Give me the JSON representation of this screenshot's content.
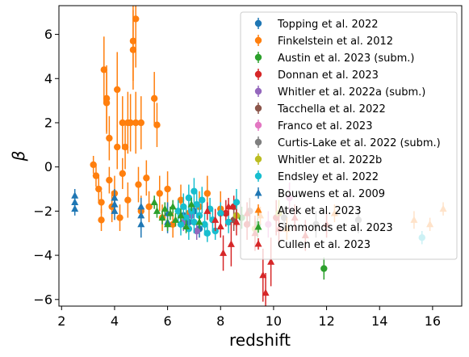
{
  "chart_data": {
    "type": "scatter",
    "title": "",
    "xlabel": "redshift",
    "ylabel": "β",
    "xlim": [
      1.9,
      17.1
    ],
    "ylim": [
      -6.3,
      7.3
    ],
    "xticks": [
      2,
      4,
      6,
      8,
      10,
      12,
      14,
      16
    ],
    "yticks": [
      -6,
      -4,
      -2,
      0,
      2,
      4,
      6
    ],
    "grid": false,
    "legend_position": "top-right",
    "series": [
      {
        "name": "Topping et al. 2022",
        "color": "#1f77b4",
        "marker": "circle",
        "points": [
          [
            6.6,
            -2.2,
            0.4
          ],
          [
            6.8,
            -2.5,
            0.3
          ],
          [
            7.0,
            -2.0,
            0.3
          ],
          [
            7.2,
            -2.8,
            0.4
          ]
        ]
      },
      {
        "name": "Finkelstein et al. 2012",
        "color": "#ff7f0e",
        "marker": "circle",
        "points": [
          [
            3.2,
            0.1,
            0.4
          ],
          [
            3.3,
            -0.4,
            0.5
          ],
          [
            3.4,
            -1.0,
            0.6
          ],
          [
            3.5,
            -1.6,
            0.5
          ],
          [
            3.5,
            -2.4,
            0.5
          ],
          [
            3.6,
            4.4,
            1.5
          ],
          [
            3.7,
            3.1,
            1.5
          ],
          [
            3.7,
            2.9,
            1.4
          ],
          [
            3.8,
            1.3,
            1.0
          ],
          [
            3.8,
            -0.6,
            0.6
          ],
          [
            3.9,
            -1.8,
            0.7
          ],
          [
            4.0,
            -1.2,
            0.8
          ],
          [
            4.1,
            3.5,
            1.7
          ],
          [
            4.1,
            0.9,
            1.0
          ],
          [
            4.2,
            -2.3,
            0.6
          ],
          [
            4.3,
            2.0,
            1.2
          ],
          [
            4.3,
            -0.3,
            0.7
          ],
          [
            4.4,
            0.9,
            1.0
          ],
          [
            4.5,
            2.0,
            1.4
          ],
          [
            4.5,
            -1.5,
            0.8
          ],
          [
            4.6,
            2.0,
            1.3
          ],
          [
            4.7,
            5.3,
            1.8
          ],
          [
            4.7,
            5.7,
            1.8
          ],
          [
            4.8,
            6.7,
            2.2
          ],
          [
            4.8,
            2.0,
            1.4
          ],
          [
            4.9,
            -0.8,
            0.8
          ],
          [
            5.0,
            2.0,
            1.2
          ],
          [
            5.0,
            -2.0,
            0.7
          ],
          [
            5.2,
            -0.5,
            0.8
          ],
          [
            5.3,
            -1.8,
            0.7
          ],
          [
            5.5,
            3.1,
            1.2
          ],
          [
            5.6,
            1.9,
            1.0
          ],
          [
            5.7,
            -1.2,
            0.8
          ],
          [
            5.8,
            -2.3,
            0.6
          ],
          [
            6.0,
            -1.0,
            0.8
          ],
          [
            6.2,
            -2.6,
            0.6
          ],
          [
            6.5,
            -1.5,
            0.7
          ],
          [
            6.8,
            -2.1,
            0.7
          ],
          [
            7.2,
            -1.8,
            0.7
          ],
          [
            7.5,
            -1.2,
            0.8
          ],
          [
            8.0,
            -1.9,
            0.8
          ]
        ]
      },
      {
        "name": "Austin et al. 2023 (subm.)",
        "color": "#2ca02c",
        "marker": "circle",
        "points": [
          [
            8.8,
            -2.3,
            0.5
          ],
          [
            9.4,
            -2.6,
            0.6
          ],
          [
            11.9,
            -4.6,
            0.5
          ]
        ]
      },
      {
        "name": "Donnan et al. 2023",
        "color": "#d62728",
        "marker": "circle",
        "points": [
          [
            8.2,
            -2.1,
            0.6
          ],
          [
            8.5,
            -1.8,
            0.5
          ],
          [
            9.0,
            -2.6,
            0.7
          ],
          [
            10.1,
            -2.3,
            0.8
          ]
        ]
      },
      {
        "name": "Whitler et al. 2022a (subm.)",
        "color": "#9467bd",
        "marker": "circle",
        "points": [
          [
            6.6,
            -2.5,
            0.4
          ],
          [
            6.9,
            -2.2,
            0.4
          ],
          [
            7.1,
            -2.9,
            0.4
          ]
        ]
      },
      {
        "name": "Tacchella et al. 2022",
        "color": "#8c564b",
        "marker": "circle",
        "points": [
          [
            8.5,
            -2.4,
            0.5
          ],
          [
            9.1,
            -2.0,
            0.6
          ]
        ]
      },
      {
        "name": "Franco et al. 2023",
        "color": "#e377c2",
        "marker": "circle",
        "points": [
          [
            9.8,
            -2.6,
            0.6
          ],
          [
            10.6,
            -1.4,
            0.7
          ]
        ]
      },
      {
        "name": "Curtis-Lake et al. 2022 (subm.)",
        "color": "#7f7f7f",
        "marker": "circle",
        "points": [
          [
            10.4,
            -2.3,
            0.5
          ],
          [
            11.6,
            -2.6,
            0.6
          ],
          [
            13.2,
            -2.4,
            0.6
          ]
        ]
      },
      {
        "name": "Whitler et al. 2022b",
        "color": "#bcbd22",
        "marker": "circle",
        "points": [
          [
            8.6,
            -2.2,
            0.5
          ],
          [
            9.3,
            -2.8,
            0.5
          ],
          [
            10.2,
            -2.1,
            0.6
          ]
        ]
      },
      {
        "name": "Endsley et al. 2022",
        "color": "#17becf",
        "marker": "circle",
        "points": [
          [
            6.4,
            -2.0,
            0.5
          ],
          [
            6.5,
            -2.6,
            0.5
          ],
          [
            6.6,
            -1.8,
            0.6
          ],
          [
            6.7,
            -2.3,
            0.5
          ],
          [
            6.8,
            -1.4,
            0.6
          ],
          [
            6.8,
            -2.8,
            0.5
          ],
          [
            6.9,
            -2.0,
            0.5
          ],
          [
            7.0,
            -1.1,
            0.6
          ],
          [
            7.0,
            -2.5,
            0.5
          ],
          [
            7.1,
            -1.7,
            0.6
          ],
          [
            7.2,
            -2.2,
            0.5
          ],
          [
            7.3,
            -1.5,
            0.6
          ],
          [
            7.4,
            -2.6,
            0.5
          ],
          [
            7.5,
            -3.0,
            0.4
          ],
          [
            7.6,
            -1.9,
            0.5
          ],
          [
            7.7,
            -2.4,
            0.5
          ],
          [
            7.8,
            -2.9,
            0.4
          ],
          [
            8.0,
            -2.1,
            0.5
          ],
          [
            8.3,
            -2.5,
            0.5
          ],
          [
            8.6,
            -1.6,
            0.6
          ],
          [
            15.6,
            -3.2,
            0.3
          ]
        ]
      },
      {
        "name": "Bouwens et al. 2009",
        "color": "#1f77b4",
        "marker": "triangle",
        "points": [
          [
            2.5,
            -1.3,
            0.3
          ],
          [
            2.5,
            -1.6,
            0.3
          ],
          [
            2.5,
            -1.9,
            0.3
          ],
          [
            4.0,
            -1.4,
            0.4
          ],
          [
            4.0,
            -1.7,
            0.4
          ],
          [
            4.0,
            -2.0,
            0.4
          ],
          [
            5.0,
            -1.8,
            0.4
          ],
          [
            5.0,
            -2.2,
            0.4
          ],
          [
            5.0,
            -2.6,
            0.6
          ],
          [
            6.0,
            -2.1,
            0.5
          ],
          [
            6.0,
            -2.5,
            0.5
          ]
        ]
      },
      {
        "name": "Atek et al. 2023",
        "color": "#ff7f0e",
        "marker": "triangle",
        "points": [
          [
            9.5,
            -2.2,
            0.4
          ],
          [
            10.5,
            -2.8,
            0.5
          ],
          [
            12.3,
            -2.1,
            0.4
          ],
          [
            15.3,
            -2.4,
            0.4
          ],
          [
            15.9,
            -2.6,
            0.3
          ],
          [
            16.4,
            -1.9,
            0.3
          ]
        ]
      },
      {
        "name": "Simmonds et al. 2023",
        "color": "#2ca02c",
        "marker": "triangle",
        "points": [
          [
            5.5,
            -1.6,
            0.3
          ],
          [
            5.6,
            -2.0,
            0.3
          ],
          [
            5.8,
            -2.3,
            0.3
          ],
          [
            5.9,
            -1.9,
            0.3
          ],
          [
            6.0,
            -2.6,
            0.3
          ],
          [
            6.1,
            -2.1,
            0.3
          ],
          [
            6.2,
            -1.8,
            0.3
          ],
          [
            6.3,
            -2.4,
            0.3
          ],
          [
            6.5,
            -2.2,
            0.3
          ],
          [
            6.7,
            -2.7,
            0.3
          ],
          [
            6.9,
            -1.7,
            0.3
          ],
          [
            7.2,
            -2.5,
            0.3
          ]
        ]
      },
      {
        "name": "Cullen et al. 2023",
        "color": "#d62728",
        "marker": "triangle",
        "points": [
          [
            7.5,
            -2.0,
            0.4
          ],
          [
            7.8,
            -2.4,
            0.5
          ],
          [
            8.0,
            -2.7,
            0.5
          ],
          [
            8.1,
            -3.9,
            0.8
          ],
          [
            8.3,
            -1.8,
            0.4
          ],
          [
            8.4,
            -3.5,
            1.0
          ],
          [
            8.6,
            -2.5,
            0.6
          ],
          [
            9.0,
            -2.1,
            0.5
          ],
          [
            9.3,
            -3.0,
            0.8
          ],
          [
            9.6,
            -4.9,
            1.2
          ],
          [
            9.7,
            -5.7,
            0.9
          ],
          [
            9.9,
            -4.3,
            1.1
          ],
          [
            10.2,
            -2.8,
            0.7
          ],
          [
            10.8,
            -2.3,
            0.6
          ],
          [
            11.2,
            -3.1,
            0.7
          ],
          [
            12.0,
            -2.6,
            0.6
          ]
        ]
      }
    ]
  }
}
